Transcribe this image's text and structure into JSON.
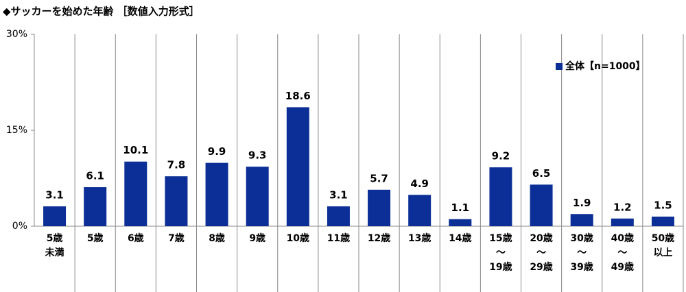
{
  "chart_data": {
    "type": "bar",
    "title": "◆サッカーを始めた年齢 ［数値入力形式］",
    "categories": [
      "5歳\n未満",
      "5歳",
      "6歳",
      "7歳",
      "8歳",
      "9歳",
      "10歳",
      "11歳",
      "12歳",
      "13歳",
      "14歳",
      "15歳\n～\n19歳",
      "20歳\n～\n29歳",
      "30歳\n～\n39歳",
      "40歳\n～\n49歳",
      "50歳\n以上"
    ],
    "series": [
      {
        "name": "全体【n=1000】",
        "color": "#0b2f96",
        "values": [
          3.1,
          6.1,
          10.1,
          7.8,
          9.9,
          9.3,
          18.6,
          3.1,
          5.7,
          4.9,
          1.1,
          9.2,
          6.5,
          1.9,
          1.2,
          1.5
        ]
      }
    ],
    "ylim": [
      0,
      30
    ],
    "yticks": [
      {
        "value": 0,
        "label": "0%"
      },
      {
        "value": 15,
        "label": "15%"
      },
      {
        "value": 30,
        "label": "30%"
      }
    ],
    "legend": "upper-right"
  }
}
